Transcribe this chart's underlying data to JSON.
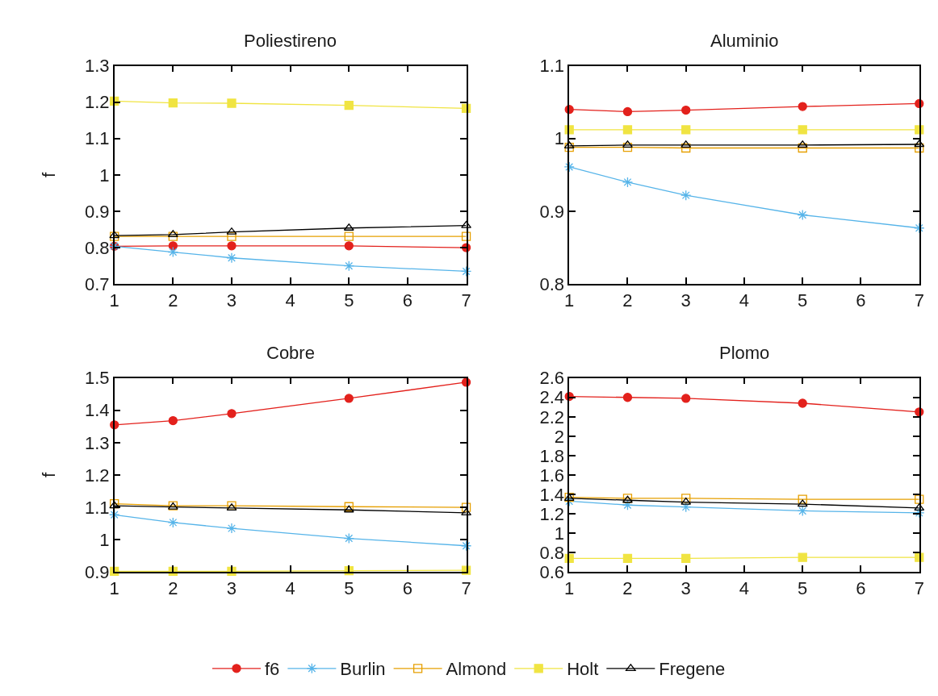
{
  "chart_data": [
    {
      "type": "line",
      "title": "Poliestireno",
      "ylabel": "f",
      "x": [
        1,
        2,
        3,
        5,
        7
      ],
      "xlim": [
        1,
        7
      ],
      "xticks": [
        1,
        2,
        3,
        4,
        5,
        6,
        7
      ],
      "ylim": [
        0.7,
        1.3
      ],
      "yticks": [
        0.7,
        0.8,
        0.9,
        1,
        1.1,
        1.2,
        1.3
      ],
      "legend": "bottom",
      "series": [
        {
          "name": "f6",
          "color": "#e3211c",
          "marker": "circle",
          "values": [
            0.804,
            0.805,
            0.805,
            0.805,
            0.8
          ]
        },
        {
          "name": "Burlin",
          "color": "#56b4e9",
          "marker": "cross",
          "values": [
            0.804,
            0.788,
            0.772,
            0.75,
            0.735
          ]
        },
        {
          "name": "Almond",
          "color": "#e69f00",
          "marker": "square-open",
          "values": [
            0.831,
            0.831,
            0.831,
            0.831,
            0.831
          ]
        },
        {
          "name": "Holt",
          "color": "#f0e442",
          "marker": "square",
          "values": [
            1.203,
            1.198,
            1.197,
            1.191,
            1.183
          ]
        },
        {
          "name": "Fregene",
          "color": "#000000",
          "marker": "triangle-open",
          "values": [
            0.833,
            0.836,
            0.843,
            0.854,
            0.861
          ]
        }
      ]
    },
    {
      "type": "line",
      "title": "Aluminio",
      "x": [
        1,
        2,
        3,
        5,
        7
      ],
      "xlim": [
        1,
        7
      ],
      "xticks": [
        1,
        2,
        3,
        4,
        5,
        6,
        7
      ],
      "ylim": [
        0.8,
        1.1
      ],
      "yticks": [
        0.8,
        0.9,
        1,
        1.1
      ],
      "series": [
        {
          "color": "#e3211c",
          "marker": "circle",
          "values": [
            1.04,
            1.037,
            1.039,
            1.044,
            1.048
          ]
        },
        {
          "color": "#56b4e9",
          "marker": "cross",
          "values": [
            0.961,
            0.94,
            0.922,
            0.895,
            0.877
          ]
        },
        {
          "color": "#e69f00",
          "marker": "square-open",
          "values": [
            0.988,
            0.988,
            0.987,
            0.987,
            0.987
          ]
        },
        {
          "color": "#f0e442",
          "marker": "square",
          "values": [
            1.012,
            1.012,
            1.012,
            1.012,
            1.012
          ]
        },
        {
          "color": "#000000",
          "marker": "triangle-open",
          "values": [
            0.99,
            0.991,
            0.991,
            0.991,
            0.992
          ]
        }
      ]
    },
    {
      "type": "line",
      "title": "Cobre",
      "ylabel": "f",
      "x": [
        1,
        2,
        3,
        5,
        7
      ],
      "xlim": [
        1,
        7
      ],
      "xticks": [
        1,
        2,
        3,
        4,
        5,
        6,
        7
      ],
      "ylim": [
        0.9,
        1.5
      ],
      "yticks": [
        0.9,
        1,
        1.1,
        1.2,
        1.3,
        1.4,
        1.5
      ],
      "series": [
        {
          "color": "#e3211c",
          "marker": "circle",
          "values": [
            1.355,
            1.368,
            1.39,
            1.437,
            1.487
          ]
        },
        {
          "color": "#56b4e9",
          "marker": "cross",
          "values": [
            1.077,
            1.053,
            1.035,
            1.004,
            0.981
          ]
        },
        {
          "color": "#e69f00",
          "marker": "square-open",
          "values": [
            1.111,
            1.105,
            1.105,
            1.102,
            1.1
          ]
        },
        {
          "color": "#f0e442",
          "marker": "square",
          "values": [
            0.902,
            0.902,
            0.902,
            0.904,
            0.905
          ]
        },
        {
          "color": "#000000",
          "marker": "triangle-open",
          "values": [
            1.105,
            1.101,
            1.098,
            1.092,
            1.083
          ]
        }
      ]
    },
    {
      "type": "line",
      "title": "Plomo",
      "x": [
        1,
        2,
        3,
        5,
        7
      ],
      "xlim": [
        1,
        7
      ],
      "xticks": [
        1,
        2,
        3,
        4,
        5,
        6,
        7
      ],
      "ylim": [
        0.6,
        2.6
      ],
      "yticks": [
        0.6,
        0.8,
        1,
        1.2,
        1.4,
        1.6,
        1.8,
        2,
        2.2,
        2.4,
        2.6
      ],
      "series": [
        {
          "color": "#e3211c",
          "marker": "circle",
          "values": [
            2.41,
            2.4,
            2.39,
            2.34,
            2.25
          ]
        },
        {
          "color": "#56b4e9",
          "marker": "cross",
          "values": [
            1.33,
            1.29,
            1.27,
            1.23,
            1.21
          ]
        },
        {
          "color": "#e69f00",
          "marker": "square-open",
          "values": [
            1.37,
            1.36,
            1.36,
            1.35,
            1.35
          ]
        },
        {
          "color": "#f0e442",
          "marker": "square",
          "values": [
            0.74,
            0.74,
            0.74,
            0.75,
            0.75
          ]
        },
        {
          "color": "#000000",
          "marker": "triangle-open",
          "values": [
            1.36,
            1.34,
            1.32,
            1.3,
            1.26
          ]
        }
      ]
    }
  ]
}
